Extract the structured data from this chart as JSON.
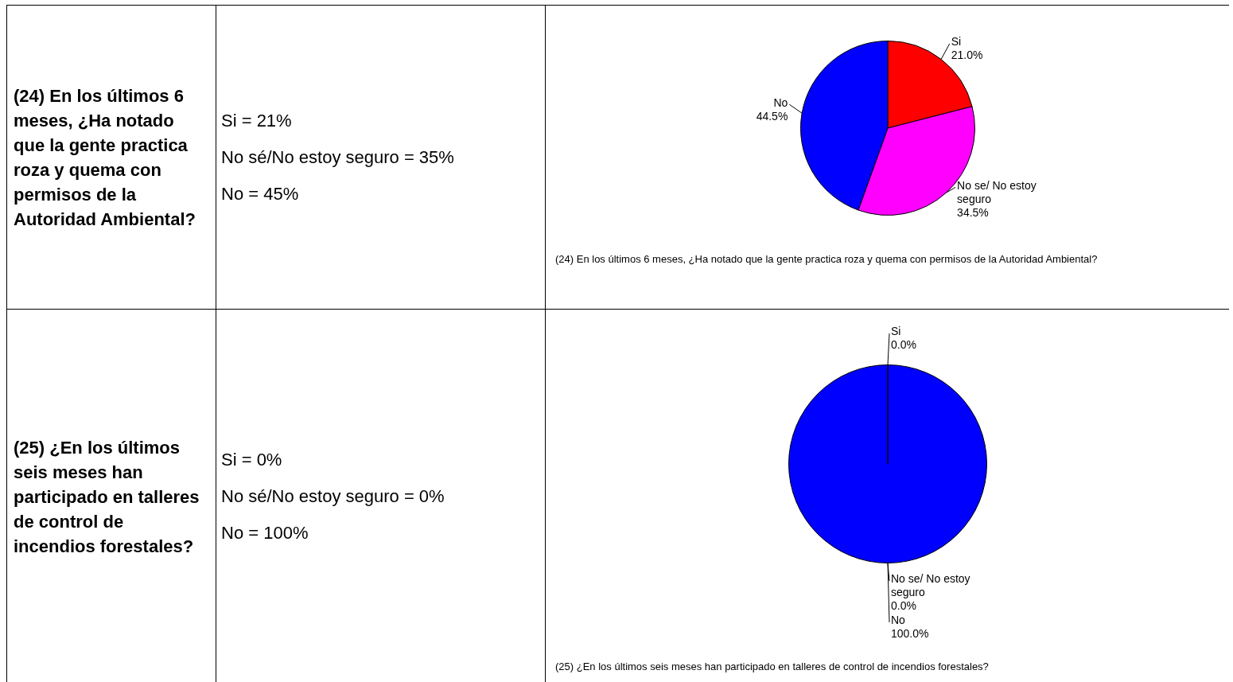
{
  "chart_data": [
    {
      "type": "other",
      "title": "(24) En los últimos 6 meses, ¿Ha notado que la gente practica roza y quema con permisos de la Autoridad Ambiental?",
      "annotations": [
        "Si = 21%",
        "No sé/No estoy seguro = 35%",
        "No = 45%"
      ]
    },
    {
      "type": "pie",
      "categories": [
        "Si",
        "No se/ No estoy seguro",
        "No"
      ],
      "values": [
        21.0,
        34.5,
        44.5
      ],
      "colors": [
        "#ff0000",
        "#ff00ff",
        "#0000ff"
      ],
      "value_labels": [
        "21.0%",
        "34.5%",
        "44.5%"
      ],
      "annotations": [
        "(24) En los últimos 6 meses, ¿Ha notado que la gente practica roza y quema con permisos de la Autoridad Ambiental?"
      ]
    },
    {
      "type": "other",
      "title": "(25) ¿En los últimos seis meses han participado en talleres de control de incendios forestales?",
      "annotations": [
        "Si = 0%",
        "No sé/No estoy seguro = 0%",
        "No = 100%"
      ]
    },
    {
      "type": "pie",
      "categories": [
        "Si",
        "No se/ No estoy seguro",
        "No"
      ],
      "values": [
        0.0,
        0.0,
        100.0
      ],
      "colors": [
        "#ff0000",
        "#ff00ff",
        "#0000ff"
      ],
      "value_labels": [
        "0.0%",
        "0.0%",
        "100.0%"
      ],
      "annotations": [
        "(25) ¿En los últimos seis meses han participado en talleres de control de incendios forestales?"
      ]
    }
  ]
}
